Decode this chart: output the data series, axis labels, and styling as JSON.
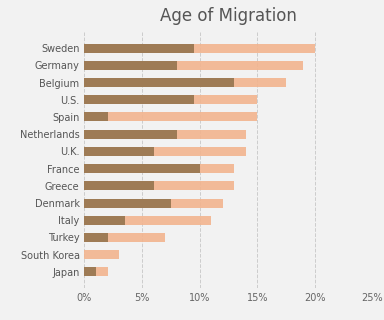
{
  "title": "Age of Migration",
  "categories": [
    "Sweden",
    "Germany",
    "Belgium",
    "U.S.",
    "Spain",
    "Netherlands",
    "U.K.",
    "France",
    "Greece",
    "Denmark",
    "Italy",
    "Turkey",
    "South Korea",
    "Japan"
  ],
  "series1_values": [
    9.5,
    8.0,
    13.0,
    9.5,
    2.0,
    8.0,
    6.0,
    10.0,
    6.0,
    7.5,
    3.5,
    2.0,
    0.0,
    1.0
  ],
  "series2_values": [
    20.0,
    19.0,
    17.5,
    15.0,
    15.0,
    14.0,
    14.0,
    13.0,
    13.0,
    12.0,
    11.0,
    7.0,
    3.0,
    2.0
  ],
  "series1_color": "#9e7b55",
  "series2_color": "#f2b48e",
  "series1_alpha": 1.0,
  "series2_alpha": 0.9,
  "xlim": [
    0,
    25
  ],
  "xticks": [
    0,
    5,
    10,
    15,
    20,
    25
  ],
  "xticklabels": [
    "0%",
    "5%",
    "10%",
    "15%",
    "20%",
    "25%"
  ],
  "background_color": "#f2f2f2",
  "title_fontsize": 12,
  "tick_fontsize": 7,
  "label_fontsize": 7,
  "grid_color": "#cccccc",
  "bar_height": 0.52
}
